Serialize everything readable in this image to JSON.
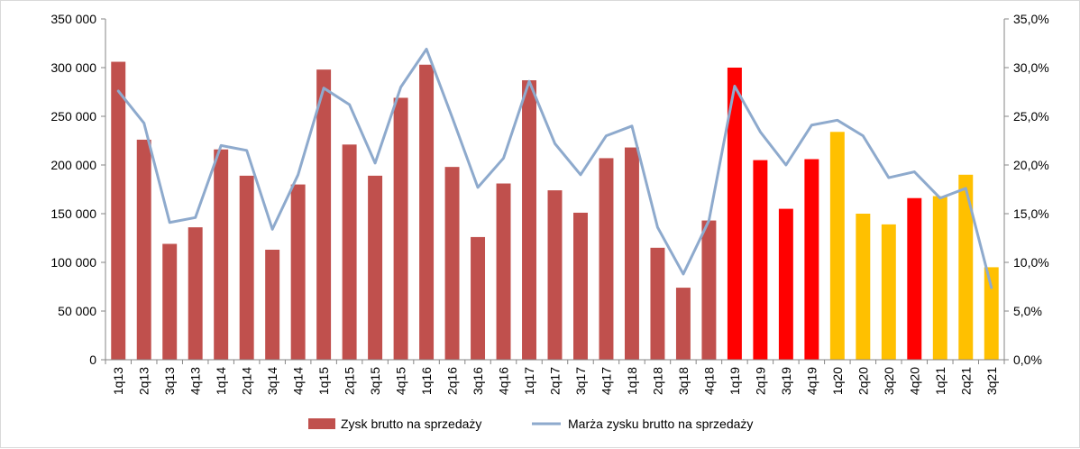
{
  "chart_data": {
    "type": "bar",
    "title": "",
    "categories": [
      "1q13",
      "2q13",
      "3q13",
      "4q13",
      "1q14",
      "2q14",
      "3q14",
      "4q14",
      "1q15",
      "2q15",
      "3q15",
      "4q15",
      "1q16",
      "2q16",
      "3q16",
      "4q16",
      "1q17",
      "2q17",
      "3q17",
      "4q17",
      "1q18",
      "2q18",
      "3q18",
      "4q18",
      "1q19",
      "2q19",
      "3q19",
      "4q19",
      "1q20",
      "2q20",
      "3q20",
      "4q20",
      "1q21",
      "2q21",
      "3q21"
    ],
    "series": [
      {
        "name": "Zysk brutto na sprzedaży",
        "type": "bar",
        "axis": "left",
        "values": [
          306000,
          226000,
          119000,
          136000,
          216000,
          189000,
          113000,
          180000,
          298000,
          221000,
          189000,
          269000,
          303000,
          198000,
          126000,
          181000,
          287000,
          174000,
          151000,
          207000,
          218000,
          115000,
          74000,
          143000,
          300000,
          205000,
          155000,
          206000,
          234000,
          150000,
          139000,
          166000,
          168000,
          190000,
          95000
        ]
      },
      {
        "name": "Marża zysku brutto na sprzedaży",
        "type": "line",
        "axis": "right",
        "values": [
          27.6,
          24.3,
          14.1,
          14.6,
          22.0,
          21.5,
          13.4,
          19.0,
          27.9,
          26.2,
          20.2,
          28.0,
          31.9,
          24.9,
          17.7,
          20.7,
          28.6,
          22.2,
          19.0,
          23.0,
          24.0,
          13.6,
          8.8,
          14.3,
          28.1,
          23.4,
          20.0,
          24.1,
          24.6,
          23.0,
          18.7,
          19.3,
          16.6,
          17.6,
          7.4
        ]
      }
    ],
    "bar_colors": [
      "#c0504d",
      "#c0504d",
      "#c0504d",
      "#c0504d",
      "#c0504d",
      "#c0504d",
      "#c0504d",
      "#c0504d",
      "#c0504d",
      "#c0504d",
      "#c0504d",
      "#c0504d",
      "#c0504d",
      "#c0504d",
      "#c0504d",
      "#c0504d",
      "#c0504d",
      "#c0504d",
      "#c0504d",
      "#c0504d",
      "#c0504d",
      "#c0504d",
      "#c0504d",
      "#c0504d",
      "#ff0000",
      "#ff0000",
      "#ff0000",
      "#ff0000",
      "#ffc000",
      "#ffc000",
      "#ffc000",
      "#ff0000",
      "#ffc000",
      "#ffc000",
      "#ffc000"
    ],
    "line_color": "#8eaacd",
    "legend_bar_color": "#c0504d",
    "ylim_left": [
      0,
      350000
    ],
    "ylim_right": [
      0,
      35
    ],
    "left_ticks": [
      "0",
      "50 000",
      "100 000",
      "150 000",
      "200 000",
      "250 000",
      "300 000",
      "350 000"
    ],
    "right_ticks": [
      "0,0%",
      "5,0%",
      "10,0%",
      "15,0%",
      "20,0%",
      "25,0%",
      "30,0%",
      "35,0%"
    ],
    "xlabel": "",
    "ylabel": "",
    "grid": false,
    "legend_position": "bottom"
  }
}
